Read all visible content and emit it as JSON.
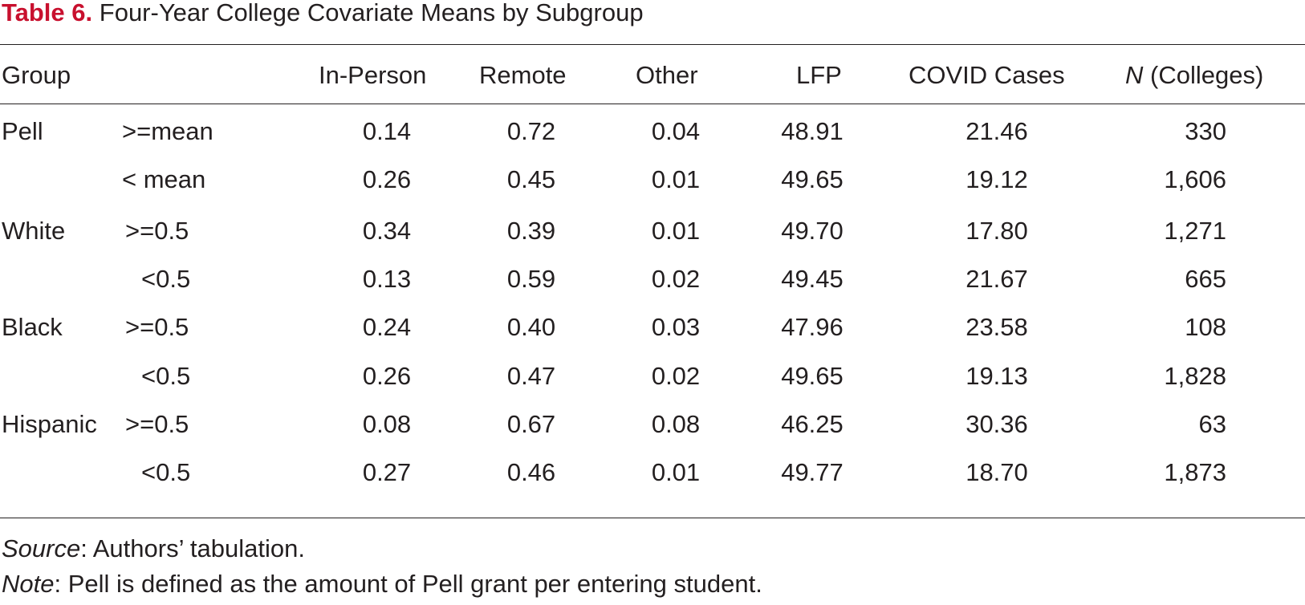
{
  "caption": {
    "label": "Table 6.",
    "title": "Four-Year College Covariate Means by Subgroup"
  },
  "headers": {
    "group": "Group",
    "in_person": "In-Person",
    "remote": "Remote",
    "other": "Other",
    "lfp": "LFP",
    "covid": "COVID Cases",
    "n_italic": "N",
    "n_rest": " (Colleges)"
  },
  "rows": [
    {
      "group": "Pell",
      "sub": ">=mean",
      "in_person": "0.14",
      "remote": "0.72",
      "other": "0.04",
      "lfp": "48.91",
      "covid": "21.46",
      "n": "330"
    },
    {
      "group": "",
      "sub": "< mean",
      "in_person": "0.26",
      "remote": "0.45",
      "other": "0.01",
      "lfp": "49.65",
      "covid": "19.12",
      "n": "1,606"
    },
    {
      "group": "White",
      "sub": ">=0.5",
      "in_person": "0.34",
      "remote": "0.39",
      "other": "0.01",
      "lfp": "49.70",
      "covid": "17.80",
      "n": "1,271"
    },
    {
      "group": "",
      "sub": "<0.5",
      "in_person": "0.13",
      "remote": "0.59",
      "other": "0.02",
      "lfp": "49.45",
      "covid": "21.67",
      "n": "665"
    },
    {
      "group": "Black",
      "sub": ">=0.5",
      "in_person": "0.24",
      "remote": "0.40",
      "other": "0.03",
      "lfp": "47.96",
      "covid": "23.58",
      "n": "108"
    },
    {
      "group": "",
      "sub": "<0.5",
      "in_person": "0.26",
      "remote": "0.47",
      "other": "0.02",
      "lfp": "49.65",
      "covid": "19.13",
      "n": "1,828"
    },
    {
      "group": "Hispanic",
      "sub": ">=0.5",
      "in_person": "0.08",
      "remote": "0.67",
      "other": "0.08",
      "lfp": "46.25",
      "covid": "30.36",
      "n": "63"
    },
    {
      "group": "",
      "sub": "<0.5",
      "in_person": "0.27",
      "remote": "0.46",
      "other": "0.01",
      "lfp": "49.77",
      "covid": "18.70",
      "n": "1,873"
    }
  ],
  "source": {
    "label": "Source",
    "text": ": Authors’ tabulation."
  },
  "note": {
    "label": "Note",
    "text": ": Pell is defined as the amount of Pell grant per entering student."
  }
}
